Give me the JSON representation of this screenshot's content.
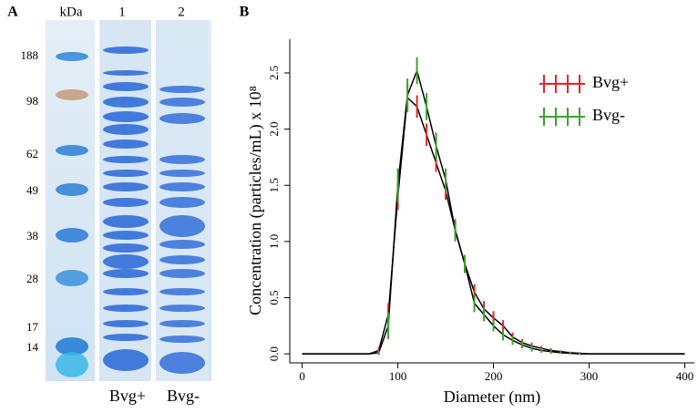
{
  "panel_a": {
    "label": "A",
    "lane_headers": [
      "kDa",
      "1",
      "2"
    ],
    "markers": [
      "188",
      "98",
      "62",
      "49",
      "38",
      "28",
      "17",
      "14"
    ],
    "lane_labels": [
      "Bvg+",
      "Bvg-"
    ]
  },
  "chart_data": {
    "type": "line",
    "label": "B",
    "x_label": "Diameter (nm)",
    "y_label": "Concentration (particles/mL) x 10⁸",
    "x": [
      0,
      60,
      70,
      80,
      90,
      100,
      110,
      120,
      130,
      140,
      150,
      160,
      170,
      180,
      190,
      200,
      210,
      220,
      230,
      240,
      250,
      260,
      270,
      280,
      290,
      300,
      400
    ],
    "series": [
      {
        "name": "Bvg+",
        "color": "#e8262a",
        "line_color": "#000000",
        "values": [
          0,
          0,
          0,
          0.03,
          0.35,
          1.4,
          2.28,
          2.2,
          1.95,
          1.7,
          1.45,
          1.1,
          0.8,
          0.55,
          0.4,
          0.32,
          0.25,
          0.15,
          0.1,
          0.07,
          0.05,
          0.03,
          0.02,
          0.01,
          0.005,
          0,
          0
        ],
        "errors": [
          null,
          null,
          null,
          0.03,
          0.1,
          0.12,
          0.12,
          0.1,
          0.1,
          0.08,
          0.08,
          0.08,
          0.08,
          0.07,
          0.07,
          0.06,
          0.05,
          0.04,
          0.03,
          0.03,
          0.02,
          0.02,
          0.01,
          0.01,
          0.01,
          null,
          null
        ]
      },
      {
        "name": "Bvg-",
        "color": "#3aa52e",
        "line_color": "#000000",
        "values": [
          0,
          0,
          0,
          0.01,
          0.25,
          1.5,
          2.3,
          2.52,
          2.2,
          1.85,
          1.55,
          1.1,
          0.8,
          0.45,
          0.35,
          0.25,
          0.17,
          0.12,
          0.08,
          0.05,
          0.03,
          0.02,
          0.01,
          0.005,
          0,
          0,
          0
        ],
        "errors": [
          null,
          null,
          null,
          0.02,
          0.12,
          0.15,
          0.15,
          0.12,
          0.12,
          0.12,
          0.1,
          0.1,
          0.08,
          0.08,
          0.06,
          0.05,
          0.05,
          0.04,
          0.03,
          0.03,
          0.02,
          0.02,
          0.01,
          0.01,
          0.01,
          null,
          null
        ]
      }
    ],
    "xlim": [
      -13,
      410
    ],
    "ylim": [
      -0.08,
      2.8
    ],
    "xticks": [
      0,
      100,
      200,
      300,
      400
    ],
    "yticks": [
      {
        "value": 0,
        "label": "0.0"
      },
      0.5,
      {
        "value": 1,
        "label": "1.0"
      },
      1.5,
      {
        "value": 2,
        "label": "2.0"
      },
      2.5
    ],
    "legend": "upper right"
  }
}
